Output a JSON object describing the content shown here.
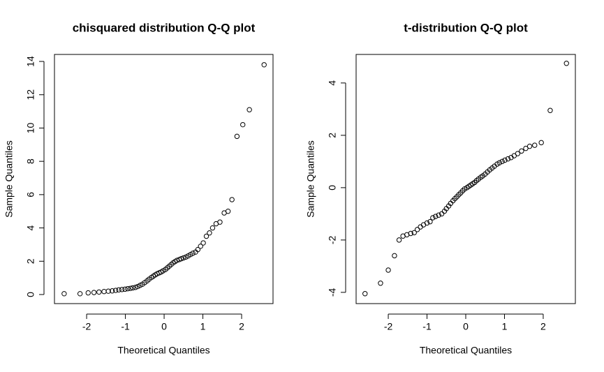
{
  "chart_data": [
    {
      "type": "scatter",
      "title": "chisquared distribution Q-Q plot",
      "x_label": "Theoretical Quantiles",
      "y_label": "Sample Quantiles",
      "x": [
        -2.58,
        -2.17,
        -1.96,
        -1.81,
        -1.68,
        -1.55,
        -1.44,
        -1.34,
        -1.25,
        -1.17,
        -1.09,
        -1.01,
        -0.94,
        -0.87,
        -0.81,
        -0.74,
        -0.68,
        -0.62,
        -0.56,
        -0.5,
        -0.44,
        -0.39,
        -0.33,
        -0.28,
        -0.23,
        -0.18,
        -0.13,
        -0.08,
        -0.03,
        0.03,
        0.08,
        0.13,
        0.18,
        0.23,
        0.28,
        0.33,
        0.39,
        0.44,
        0.5,
        0.56,
        0.62,
        0.68,
        0.74,
        0.81,
        0.87,
        0.94,
        1.01,
        1.09,
        1.17,
        1.25,
        1.34,
        1.44,
        1.55,
        1.65,
        1.75,
        1.88,
        2.03,
        2.2,
        2.58
      ],
      "values": [
        0.05,
        0.05,
        0.1,
        0.12,
        0.15,
        0.18,
        0.2,
        0.22,
        0.25,
        0.28,
        0.3,
        0.32,
        0.35,
        0.37,
        0.4,
        0.43,
        0.48,
        0.55,
        0.62,
        0.72,
        0.82,
        0.92,
        1.02,
        1.1,
        1.18,
        1.25,
        1.3,
        1.35,
        1.42,
        1.5,
        1.6,
        1.7,
        1.8,
        1.9,
        1.98,
        2.05,
        2.1,
        2.15,
        2.2,
        2.25,
        2.32,
        2.4,
        2.48,
        2.55,
        2.7,
        2.9,
        3.1,
        3.5,
        3.7,
        4.0,
        4.25,
        4.35,
        4.9,
        5.0,
        5.7,
        9.5,
        10.2,
        11.1,
        13.8
      ],
      "xlim": [
        -2.83,
        2.81
      ],
      "ylim": [
        -0.545,
        14.42
      ],
      "xticks": [
        -2,
        -1,
        0,
        1,
        2
      ],
      "yticks": [
        0,
        2,
        4,
        6,
        8,
        10,
        12,
        14
      ],
      "color": "#000000"
    },
    {
      "type": "scatter",
      "title": "t-distribution Q-Q plot",
      "x_label": "Theoretical Quantiles",
      "y_label": "Sample Quantiles",
      "x": [
        -2.6,
        -2.2,
        -2.0,
        -1.84,
        -1.72,
        -1.62,
        -1.52,
        -1.42,
        -1.33,
        -1.25,
        -1.17,
        -1.09,
        -1.0,
        -0.92,
        -0.85,
        -0.78,
        -0.7,
        -0.62,
        -0.55,
        -0.5,
        -0.44,
        -0.39,
        -0.33,
        -0.28,
        -0.23,
        -0.18,
        -0.13,
        -0.08,
        -0.03,
        0.03,
        0.08,
        0.13,
        0.18,
        0.23,
        0.28,
        0.33,
        0.39,
        0.44,
        0.5,
        0.56,
        0.62,
        0.68,
        0.74,
        0.81,
        0.87,
        0.94,
        1.01,
        1.09,
        1.17,
        1.25,
        1.34,
        1.44,
        1.55,
        1.65,
        1.78,
        1.95,
        2.18,
        2.6
      ],
      "values": [
        -4.05,
        -3.65,
        -3.15,
        -2.6,
        -2.0,
        -1.85,
        -1.8,
        -1.75,
        -1.72,
        -1.6,
        -1.5,
        -1.42,
        -1.35,
        -1.3,
        -1.15,
        -1.1,
        -1.05,
        -1.0,
        -0.9,
        -0.8,
        -0.7,
        -0.6,
        -0.5,
        -0.42,
        -0.35,
        -0.27,
        -0.2,
        -0.12,
        -0.05,
        0.0,
        0.05,
        0.1,
        0.15,
        0.2,
        0.27,
        0.33,
        0.4,
        0.45,
        0.52,
        0.6,
        0.68,
        0.75,
        0.82,
        0.9,
        0.95,
        1.0,
        1.05,
        1.1,
        1.15,
        1.22,
        1.3,
        1.4,
        1.5,
        1.58,
        1.62,
        1.72,
        2.95,
        4.75
      ],
      "xlim": [
        -2.83,
        2.83
      ],
      "ylim": [
        -4.43,
        5.09
      ],
      "xticks": [
        -2,
        -1,
        0,
        1,
        2
      ],
      "yticks": [
        -4,
        -2,
        0,
        2,
        4
      ],
      "color": "#000000"
    }
  ]
}
